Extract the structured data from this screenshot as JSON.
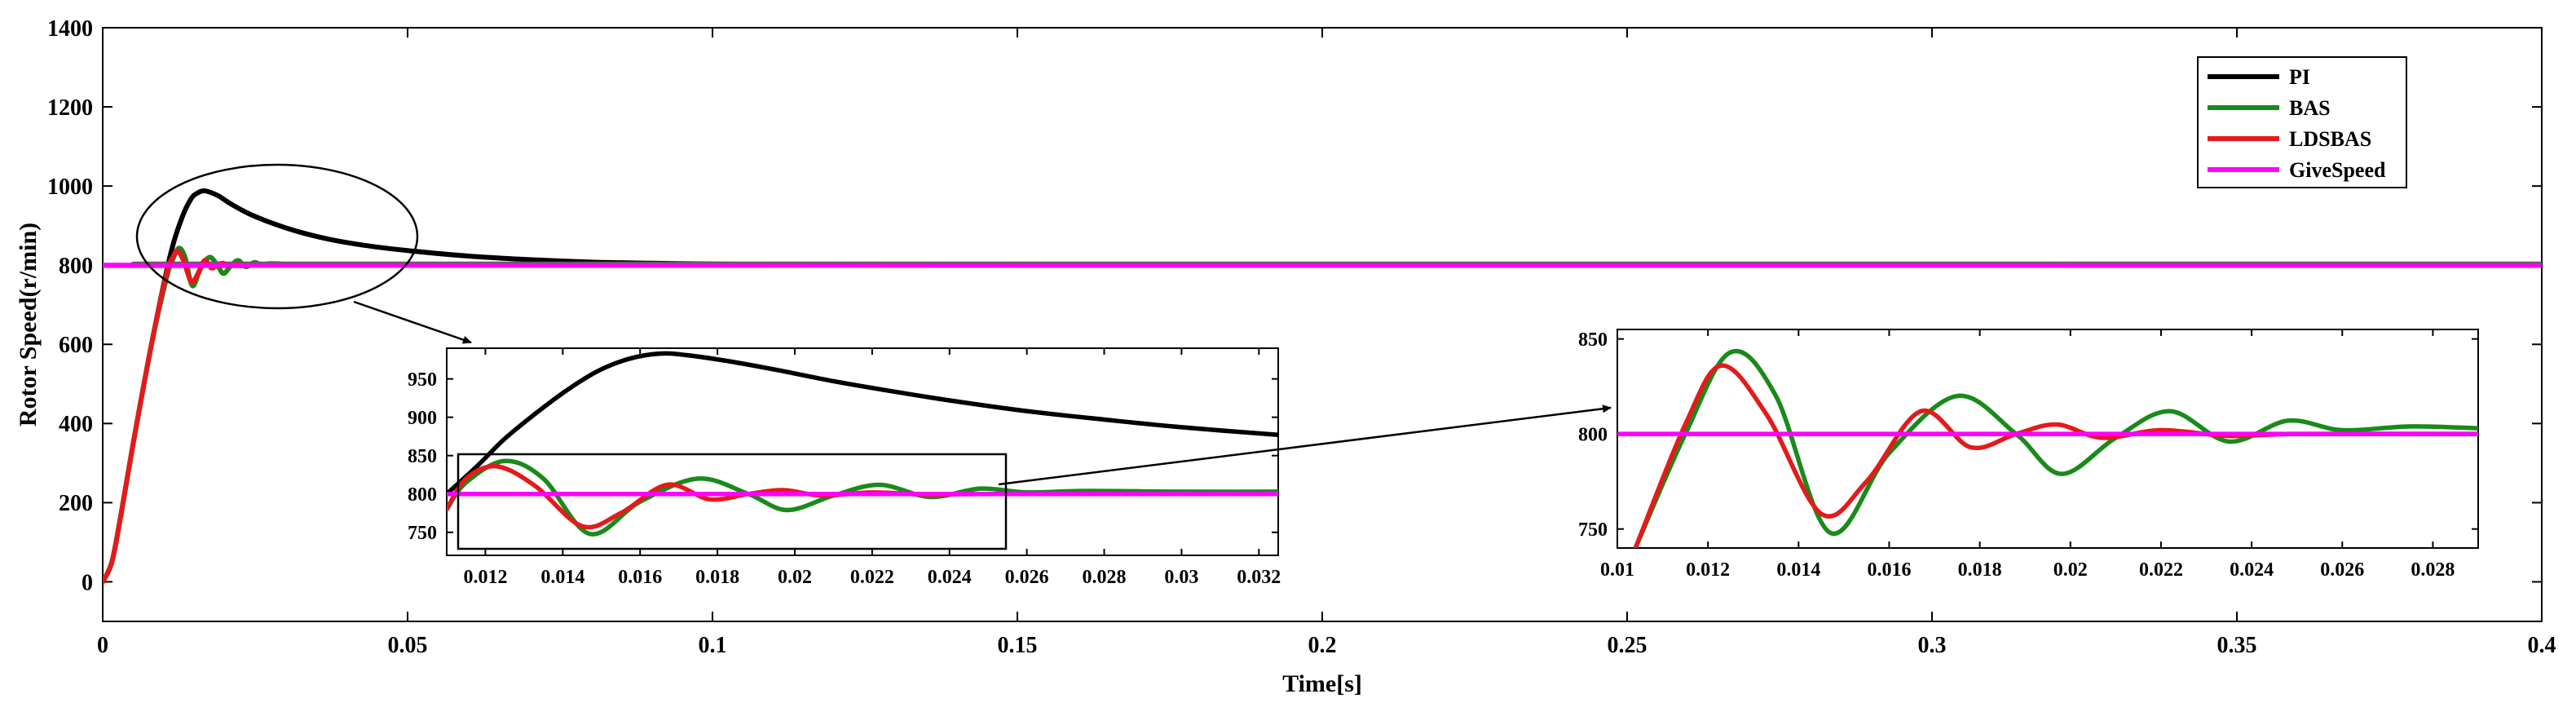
{
  "chart_data": [
    {
      "id": "main",
      "type": "line",
      "title": "",
      "xlabel": "Time[s]",
      "ylabel": "Rotor Speed(r/min)",
      "xlim": [
        0,
        0.4
      ],
      "ylim": [
        -100,
        1400
      ],
      "xticks": [
        0,
        0.05,
        0.1,
        0.15,
        0.2,
        0.25,
        0.3,
        0.35,
        0.4
      ],
      "xtick_labels": [
        "0",
        "0.05",
        "0.1",
        "0.15",
        "0.2",
        "0.25",
        "0.3",
        "0.35",
        "0.4"
      ],
      "yticks": [
        0,
        200,
        400,
        600,
        800,
        1000,
        1200,
        1400
      ],
      "ytick_labels": [
        "0",
        "200",
        "400",
        "600",
        "800",
        "1000",
        "1200",
        "1400"
      ],
      "legend": {
        "placement": "top-right",
        "entries": [
          "PI",
          "BAS",
          "LDSBAS",
          "GiveSpeed"
        ]
      },
      "series": [
        {
          "name": "PI",
          "color": "#000000",
          "x": [
            0,
            0.0015,
            0.003,
            0.005,
            0.008,
            0.011,
            0.013,
            0.0145,
            0.0155,
            0.0165,
            0.0175,
            0.019,
            0.021,
            0.024,
            0.028,
            0.032,
            0.037,
            0.043,
            0.05,
            0.06,
            0.07,
            0.08,
            0.09,
            0.1,
            0.12,
            0.15,
            0.4
          ],
          "y": [
            0,
            50,
            170,
            350,
            600,
            820,
            920,
            968,
            982,
            988,
            985,
            975,
            955,
            930,
            905,
            885,
            866,
            850,
            837,
            823,
            814,
            808,
            805,
            803,
            801,
            800,
            800
          ]
        },
        {
          "name": "BAS",
          "color": "#1a8a1a",
          "x": [
            0,
            0.0015,
            0.003,
            0.005,
            0.008,
            0.0105,
            0.0115,
            0.0125,
            0.0135,
            0.0147,
            0.016,
            0.0175,
            0.0188,
            0.0198,
            0.021,
            0.0222,
            0.0235,
            0.0248,
            0.026,
            0.0275,
            0.03,
            0.033,
            0.4
          ],
          "y": [
            0,
            50,
            170,
            350,
            600,
            770,
            815,
            843,
            820,
            748,
            790,
            820,
            800,
            779,
            798,
            812,
            796,
            807,
            802,
            804,
            803,
            803,
            803
          ]
        },
        {
          "name": "LDSBAS",
          "color": "#e41a1c",
          "x": [
            0,
            0.0015,
            0.003,
            0.005,
            0.008,
            0.0105,
            0.0115,
            0.0123,
            0.0133,
            0.0145,
            0.0155,
            0.0167,
            0.0178,
            0.0188,
            0.0197,
            0.0207,
            0.022,
            0.0235,
            0.025,
            0.4
          ],
          "y": [
            0,
            50,
            170,
            350,
            600,
            780,
            820,
            836,
            810,
            758,
            775,
            812,
            793,
            800,
            805,
            798,
            802,
            799,
            800,
            800
          ]
        },
        {
          "name": "GiveSpeed",
          "color": "#ff00ff",
          "x": [
            0,
            0.4
          ],
          "y": [
            800,
            800
          ]
        }
      ],
      "annotations": [
        "ellipse highlighting initial overshoot region, arrow to inset 1"
      ]
    },
    {
      "id": "inset1",
      "type": "line",
      "title": "",
      "xlim": [
        0.011,
        0.0325
      ],
      "ylim": [
        720,
        990
      ],
      "xticks": [
        0.012,
        0.014,
        0.016,
        0.018,
        0.02,
        0.022,
        0.024,
        0.026,
        0.028,
        0.03,
        0.032
      ],
      "xtick_labels": [
        "0.012",
        "0.014",
        "0.016",
        "0.018",
        "0.02",
        "0.022",
        "0.024",
        "0.026",
        "0.028",
        "0.03",
        "0.032"
      ],
      "yticks": [
        750,
        800,
        850,
        900,
        950
      ],
      "ytick_labels": [
        "750",
        "800",
        "850",
        "900",
        "950"
      ],
      "series": [
        {
          "name": "PI",
          "color": "#000000",
          "x": [
            0.011,
            0.0118,
            0.0125,
            0.0133,
            0.0141,
            0.0149,
            0.0157,
            0.0165,
            0.0172,
            0.0183,
            0.0195,
            0.021,
            0.0225,
            0.024,
            0.026,
            0.028,
            0.03,
            0.0325
          ],
          "y": [
            800,
            837,
            872,
            905,
            935,
            960,
            976,
            983,
            981,
            973,
            962,
            947,
            934,
            922,
            908,
            897,
            887,
            877
          ]
        },
        {
          "name": "BAS",
          "color": "#1a8a1a",
          "x": [
            0.011,
            0.0115,
            0.0125,
            0.0135,
            0.0147,
            0.016,
            0.0175,
            0.0188,
            0.0198,
            0.021,
            0.0222,
            0.0235,
            0.0248,
            0.026,
            0.0275,
            0.03,
            0.0325
          ],
          "y": [
            780,
            815,
            843,
            820,
            748,
            790,
            820,
            800,
            779,
            798,
            812,
            796,
            807,
            802,
            804,
            803,
            803
          ]
        },
        {
          "name": "LDSBAS",
          "color": "#e41a1c",
          "x": [
            0.011,
            0.0115,
            0.0123,
            0.0133,
            0.0145,
            0.0155,
            0.0167,
            0.0178,
            0.0188,
            0.0197,
            0.0207,
            0.022,
            0.0235,
            0.025,
            0.0325
          ],
          "y": [
            780,
            820,
            836,
            810,
            758,
            775,
            812,
            793,
            800,
            805,
            798,
            802,
            799,
            800,
            800
          ]
        },
        {
          "name": "GiveSpeed",
          "color": "#ff00ff",
          "x": [
            0.011,
            0.0325
          ],
          "y": [
            800,
            800
          ]
        }
      ],
      "annotations": [
        "rectangle highlighting oscillation region, arrow to inset 2"
      ]
    },
    {
      "id": "inset2",
      "type": "line",
      "title": "",
      "xlim": [
        0.01,
        0.029
      ],
      "ylim": [
        740,
        855
      ],
      "xticks": [
        0.01,
        0.012,
        0.014,
        0.016,
        0.018,
        0.02,
        0.022,
        0.024,
        0.026,
        0.028
      ],
      "xtick_labels": [
        "0.01",
        "0.012",
        "0.014",
        "0.016",
        "0.018",
        "0.02",
        "0.022",
        "0.024",
        "0.026",
        "0.028"
      ],
      "yticks": [
        750,
        800,
        850
      ],
      "ytick_labels": [
        "750",
        "800",
        "850"
      ],
      "series": [
        {
          "name": "BAS",
          "color": "#1a8a1a",
          "x": [
            0.0104,
            0.0115,
            0.0125,
            0.0135,
            0.0147,
            0.016,
            0.0175,
            0.0188,
            0.0198,
            0.021,
            0.0222,
            0.0235,
            0.0248,
            0.026,
            0.0275,
            0.029
          ],
          "y": [
            740,
            800,
            843,
            820,
            748,
            790,
            820,
            800,
            779,
            798,
            812,
            796,
            807,
            802,
            804,
            803
          ]
        },
        {
          "name": "LDSBAS",
          "color": "#e41a1c",
          "x": [
            0.0104,
            0.0115,
            0.0123,
            0.0133,
            0.0145,
            0.0155,
            0.0167,
            0.0178,
            0.0188,
            0.0197,
            0.0207,
            0.022,
            0.0235,
            0.025,
            0.029
          ],
          "y": [
            740,
            805,
            836,
            810,
            758,
            775,
            812,
            793,
            800,
            805,
            798,
            802,
            799,
            800,
            800
          ]
        },
        {
          "name": "GiveSpeed",
          "color": "#ff00ff",
          "x": [
            0.01,
            0.029
          ],
          "y": [
            800,
            800
          ]
        }
      ]
    }
  ]
}
